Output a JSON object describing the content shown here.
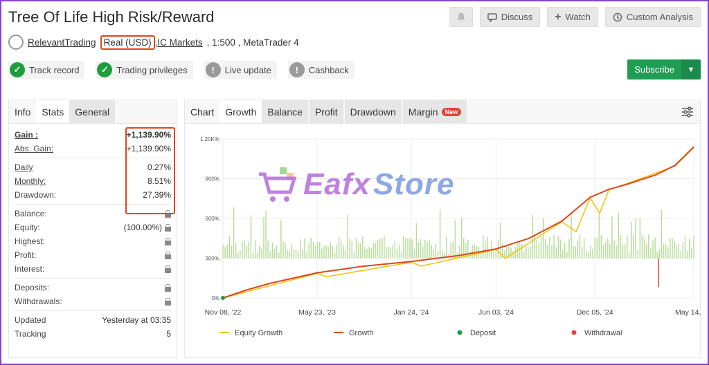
{
  "header": {
    "title": "Tree Of Life High Risk/Reward",
    "author": "RelevantTrading",
    "account_type": "Real (USD)",
    "broker": "IC Markets",
    "leverage": ", 1:500 , MetaTrader 4",
    "comma": ","
  },
  "actions": {
    "discuss": "Discuss",
    "watch": "Watch",
    "custom_analysis": "Custom Analysis",
    "subscribe": "Subscribe"
  },
  "badges": [
    {
      "label": "Track record",
      "status": "ok"
    },
    {
      "label": "Trading privileges",
      "status": "ok"
    },
    {
      "label": "Live update",
      "status": "warn"
    },
    {
      "label": "Cashback",
      "status": "warn"
    }
  ],
  "left_tabs": [
    "Info",
    "Stats",
    "General"
  ],
  "stats": {
    "gain_label": "Gain :",
    "gain_value": "+1,139.90%",
    "abs_gain_label": "Abs. Gain:",
    "abs_gain_value": "+1,139.90%",
    "daily_label": "Daily",
    "daily_value": "0.27%",
    "monthly_label": "Monthly:",
    "monthly_value": "8.51%",
    "drawdown_label": "Drawdown:",
    "drawdown_value": "27.39%",
    "balance_label": "Balance:",
    "equity_label": "Equity:",
    "equity_value": "(100.00%)",
    "highest_label": "Highest:",
    "profit_label": "Profit:",
    "interest_label": "Interest:",
    "deposits_label": "Deposits:",
    "withdrawals_label": "Withdrawals:",
    "updated_label": "Updated",
    "updated_value": "Yesterday at 03:35",
    "tracking_label": "Tracking",
    "tracking_value": "5"
  },
  "chart_tabs": [
    "Chart",
    "Growth",
    "Balance",
    "Profit",
    "Drawdown",
    "Margin"
  ],
  "new_badge": "New",
  "watermark": {
    "part1": "Eafx",
    "part2": "Store"
  },
  "chart_data": {
    "type": "line",
    "x": [
      "Nov 08, '22",
      "May 23, '23",
      "Jan 24, '24",
      "Jun 03, '24",
      "Dec 05, '24",
      "May 14, '25"
    ],
    "x_fraction": [
      0.0,
      0.2,
      0.4,
      0.58,
      0.79,
      1.0
    ],
    "y_ticks": [
      "0%",
      "300%",
      "600%",
      "900%",
      "1.20K%"
    ],
    "ylim": [
      0,
      1200
    ],
    "series": [
      {
        "name": "Growth",
        "color": "#e0451d",
        "points": [
          [
            0,
            0
          ],
          [
            0.05,
            60
          ],
          [
            0.1,
            110
          ],
          [
            0.2,
            190
          ],
          [
            0.3,
            240
          ],
          [
            0.4,
            275
          ],
          [
            0.5,
            320
          ],
          [
            0.58,
            370
          ],
          [
            0.65,
            450
          ],
          [
            0.72,
            580
          ],
          [
            0.78,
            760
          ],
          [
            0.82,
            820
          ],
          [
            0.86,
            860
          ],
          [
            0.92,
            930
          ],
          [
            0.96,
            1000
          ],
          [
            1.0,
            1140
          ]
        ]
      },
      {
        "name": "Equity Growth",
        "color": "#f2c200",
        "points": [
          [
            0.0,
            0
          ],
          [
            0.2,
            185
          ],
          [
            0.22,
            160
          ],
          [
            0.4,
            270
          ],
          [
            0.42,
            240
          ],
          [
            0.58,
            365
          ],
          [
            0.6,
            300
          ],
          [
            0.72,
            575
          ],
          [
            0.75,
            500
          ],
          [
            0.78,
            755
          ],
          [
            0.8,
            640
          ],
          [
            0.82,
            815
          ],
          [
            0.96,
            995
          ],
          [
            1.0,
            1135
          ]
        ]
      }
    ],
    "legend": [
      "Equity Growth",
      "Growth",
      "Deposit",
      "Withdrawal"
    ],
    "colors": {
      "equity": "#f2c200",
      "growth": "#e0451d",
      "deposit": "#1e9e3a",
      "withdrawal": "#e0453b",
      "bars": "#b7dd9a"
    }
  }
}
